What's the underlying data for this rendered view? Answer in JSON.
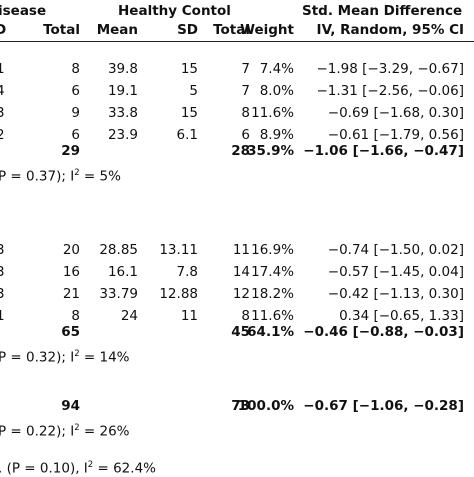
{
  "chart_data": {
    "type": "table",
    "headers": {
      "group1_title": "isease",
      "group2_title": "Healthy Contol",
      "group3_title": "Std. Mean Difference",
      "sub": {
        "c0": "D",
        "c1": "Total",
        "c2": "Mean",
        "c3": "SD",
        "c4": "Total",
        "c5": "Weight",
        "c6": "IV, Random, 95% CI"
      }
    },
    "rows": [
      {
        "kind": "data",
        "cells": [
          "1",
          "8",
          "39.8",
          "15",
          "7",
          "7.4%",
          "−1.98 [−3.29, −0.67]"
        ]
      },
      {
        "kind": "data",
        "cells": [
          "4",
          "6",
          "19.1",
          "5",
          "7",
          "8.0%",
          "−1.31 [−2.56, −0.06]"
        ]
      },
      {
        "kind": "data",
        "cells": [
          "3",
          "9",
          "33.8",
          "15",
          "8",
          "11.6%",
          "−0.69 [−1.68, 0.30]"
        ]
      },
      {
        "kind": "data",
        "cells": [
          "2",
          "6",
          "23.9",
          "6.1",
          "6",
          "8.9%",
          "−0.61 [−1.79, 0.56]"
        ]
      },
      {
        "kind": "subtotal",
        "cells": [
          "",
          "29",
          "",
          "",
          "28",
          "35.9%",
          "−1.06 [−1.66, −0.47]"
        ]
      },
      {
        "kind": "het",
        "pre": "P = 0.37); I",
        "sup": "2",
        "post": " = 5%"
      },
      {
        "kind": "data",
        "cells": [
          "3",
          "20",
          "28.85",
          "13.11",
          "11",
          "16.9%",
          "−0.74 [−1.50, 0.02]"
        ]
      },
      {
        "kind": "data",
        "cells": [
          "3",
          "16",
          "16.1",
          "7.8",
          "14",
          "17.4%",
          "−0.57 [−1.45, 0.04]"
        ]
      },
      {
        "kind": "data",
        "cells": [
          "3",
          "21",
          "33.79",
          "12.88",
          "12",
          "18.2%",
          "−0.42 [−1.13, 0.30]"
        ]
      },
      {
        "kind": "data",
        "cells": [
          "1",
          "8",
          "24",
          "11",
          "8",
          "11.6%",
          "0.34 [−0.65, 1.33]"
        ]
      },
      {
        "kind": "subtotal",
        "cells": [
          "",
          "65",
          "",
          "",
          "45",
          "64.1%",
          "−0.46 [−0.88, −0.03]"
        ]
      },
      {
        "kind": "het",
        "pre": "P = 0.32); I",
        "sup": "2",
        "post": " = 14%"
      },
      {
        "kind": "subtotal",
        "cells": [
          "",
          "94",
          "",
          "",
          "73",
          "100.0%",
          "−0.67 [−1.06, −0.28]"
        ]
      },
      {
        "kind": "het",
        "pre": "P = 0.22); I",
        "sup": "2",
        "post": " = 26%"
      },
      {
        "kind": "het",
        "pre": ". (P = 0.10), I",
        "sup": "2",
        "post": " = 62.4%"
      }
    ]
  }
}
